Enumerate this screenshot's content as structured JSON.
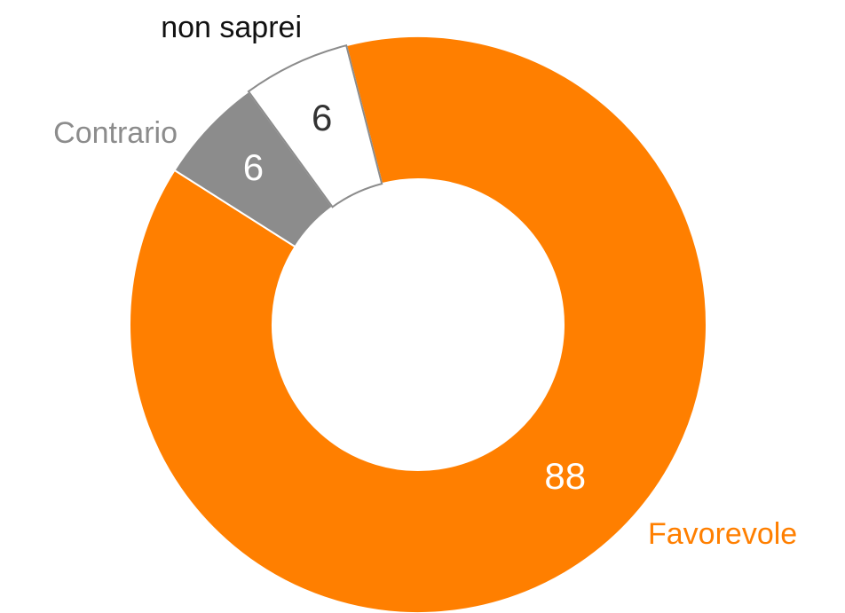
{
  "chart_data": {
    "type": "pie",
    "categories": [
      "Favorevole",
      "Contrario",
      "non saprei"
    ],
    "values": [
      88,
      6,
      6
    ],
    "colors": [
      "#ff7f00",
      "#8c8c8c",
      "#ffffff"
    ],
    "donut": true
  }
}
